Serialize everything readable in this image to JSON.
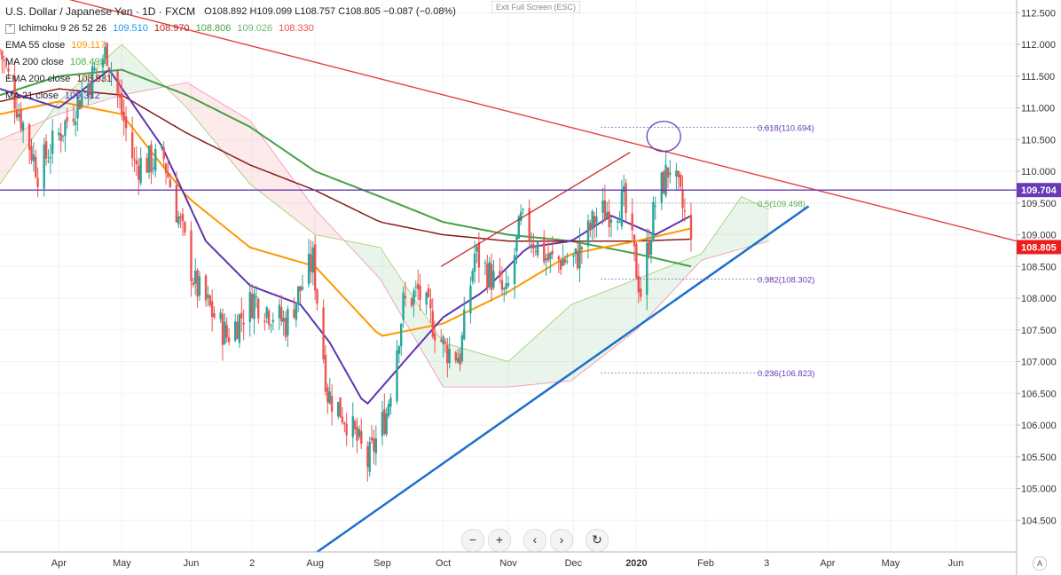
{
  "header": {
    "title": "U.S. Dollar / Japanese Yen · 1D · FXCM",
    "ohlc": "O108.892 H109.099 L108.757 C108.805 −0.087 (−0.08%)"
  },
  "indicators": [
    {
      "label": "Ichimoku 9 26 52 26",
      "values": [
        "109.510",
        "108.970",
        "108.806",
        "109.026",
        "108.330"
      ],
      "colors": [
        "#2196f3",
        "#b71c1c",
        "#43a047",
        "#66bb6a",
        "#ef5350"
      ]
    },
    {
      "label": "EMA 55 close",
      "values": [
        "109.117"
      ],
      "colors": [
        "#ff9800"
      ]
    },
    {
      "label": "MA 200 close",
      "values": [
        "108.499"
      ],
      "colors": [
        "#4caf50"
      ]
    },
    {
      "label": "EMA 200 close",
      "values": [
        "108.931"
      ],
      "colors": [
        "#8b1a1a"
      ]
    },
    {
      "label": "MA 21 close",
      "values": [
        "109.312"
      ],
      "colors": [
        "#5e35b1"
      ]
    }
  ],
  "ui": {
    "exit_fullscreen": "Exit Full Screen (ESC)",
    "auto_label": "A"
  },
  "nav": {
    "zoom_out": "−",
    "zoom_in": "+",
    "back": "‹",
    "forward": "›",
    "reset": "↻"
  },
  "colors": {
    "bull": "#26a69a",
    "bear": "#ef5350",
    "accent": "#673ab7",
    "price_label": "#ef1c1c"
  },
  "chart_data": {
    "type": "candlestick",
    "symbol": "USDJPY",
    "timeframe": "1D",
    "y_ticks": [
      "104.500",
      "105.000",
      "105.500",
      "106.000",
      "106.500",
      "107.000",
      "107.500",
      "108.000",
      "108.500",
      "109.000",
      "109.500",
      "110.000",
      "110.500",
      "111.000",
      "111.500",
      "112.000",
      "112.500"
    ],
    "x_ticks": [
      {
        "label": "Apr",
        "date": "2019-04-01"
      },
      {
        "label": "May",
        "date": "2019-05-01"
      },
      {
        "label": "Jun",
        "date": "2019-06-03"
      },
      {
        "label": "2",
        "date": "2019-07-02"
      },
      {
        "label": "Aug",
        "date": "2019-08-01"
      },
      {
        "label": "Sep",
        "date": "2019-09-02"
      },
      {
        "label": "Oct",
        "date": "2019-10-01"
      },
      {
        "label": "Nov",
        "date": "2019-11-01"
      },
      {
        "label": "Dec",
        "date": "2019-12-02"
      },
      {
        "label": "2020",
        "date": "2020-01-01"
      },
      {
        "label": "Feb",
        "date": "2020-02-03"
      },
      {
        "label": "3",
        "date": "2020-03-03"
      },
      {
        "label": "Apr",
        "date": "2020-04-01"
      },
      {
        "label": "May",
        "date": "2020-05-01"
      },
      {
        "label": "Jun",
        "date": "2020-06-01"
      }
    ],
    "x_start": "2019-03-04",
    "x_end": "2020-06-30",
    "y_range": [
      104.0,
      112.7
    ],
    "last_price": {
      "value": 108.805,
      "label": "108.805"
    },
    "horizontal_level": {
      "value": 109.704,
      "label": "109.704"
    },
    "fibonacci": [
      {
        "level": "0.618",
        "price": 110.694,
        "label": "0.618(110.694)",
        "color": "#673ab7"
      },
      {
        "level": "0.5",
        "price": 109.498,
        "label": "0.5(109.498)",
        "color": "#4caf50"
      },
      {
        "level": "0.382",
        "price": 108.302,
        "label": "0.382(108.302)",
        "color": "#673ab7"
      },
      {
        "level": "0.236",
        "price": 106.823,
        "label": "0.236(106.823)",
        "color": "#673ab7"
      }
    ],
    "trendlines": [
      {
        "name": "descending-resistance",
        "color": "#e53935",
        "points": [
          [
            "2019-04-01",
            112.75
          ],
          [
            "2020-06-30",
            108.9
          ]
        ]
      },
      {
        "name": "ascending-support",
        "color": "#1e6fc8",
        "points": [
          [
            "2019-08-02",
            104.0
          ],
          [
            "2020-03-23",
            109.45
          ]
        ]
      },
      {
        "name": "channel-top",
        "color": "#c62828",
        "points": [
          [
            "2019-09-30",
            108.5
          ],
          [
            "2019-12-29",
            110.3
          ]
        ]
      }
    ],
    "anchor_points": {
      "close": [
        [
          "2019-03-04",
          111.9
        ],
        [
          "2019-03-22",
          110.0
        ],
        [
          "2019-04-10",
          111.1
        ],
        [
          "2019-04-24",
          111.9
        ],
        [
          "2019-05-07",
          110.1
        ],
        [
          "2019-05-21",
          110.2
        ],
        [
          "2019-06-05",
          108.2
        ],
        [
          "2019-06-20",
          107.4
        ],
        [
          "2019-07-03",
          108.0
        ],
        [
          "2019-07-18",
          107.6
        ],
        [
          "2019-07-31",
          108.6
        ],
        [
          "2019-08-07",
          106.5
        ],
        [
          "2019-08-16",
          106.1
        ],
        [
          "2019-08-26",
          105.4
        ],
        [
          "2019-09-04",
          106.2
        ],
        [
          "2019-09-12",
          107.9
        ],
        [
          "2019-09-19",
          108.1
        ],
        [
          "2019-10-02",
          107.2
        ],
        [
          "2019-10-09",
          107.1
        ],
        [
          "2019-10-16",
          108.7
        ],
        [
          "2019-10-31",
          108.0
        ],
        [
          "2019-11-07",
          109.2
        ],
        [
          "2019-11-20",
          108.6
        ],
        [
          "2019-12-03",
          108.6
        ],
        [
          "2019-12-13",
          109.3
        ],
        [
          "2019-12-26",
          109.5
        ],
        [
          "2020-01-03",
          108.1
        ],
        [
          "2020-01-10",
          109.5
        ],
        [
          "2020-01-17",
          110.1
        ],
        [
          "2020-01-24",
          109.3
        ],
        [
          "2020-01-27",
          108.8
        ]
      ],
      "ema55": [
        [
          "2019-03-04",
          110.9
        ],
        [
          "2019-04-01",
          111.1
        ],
        [
          "2019-05-01",
          110.9
        ],
        [
          "2019-06-01",
          109.6
        ],
        [
          "2019-07-01",
          108.8
        ],
        [
          "2019-08-01",
          108.5
        ],
        [
          "2019-09-01",
          107.4
        ],
        [
          "2019-10-01",
          107.6
        ],
        [
          "2019-11-01",
          108.1
        ],
        [
          "2019-12-01",
          108.7
        ],
        [
          "2020-01-01",
          108.9
        ],
        [
          "2020-01-27",
          109.1
        ]
      ],
      "ma200": [
        [
          "2019-03-04",
          111.2
        ],
        [
          "2019-04-01",
          111.5
        ],
        [
          "2019-05-01",
          111.6
        ],
        [
          "2019-06-01",
          111.2
        ],
        [
          "2019-07-01",
          110.7
        ],
        [
          "2019-08-01",
          110.0
        ],
        [
          "2019-09-01",
          109.6
        ],
        [
          "2019-10-01",
          109.2
        ],
        [
          "2019-11-01",
          109.0
        ],
        [
          "2019-12-01",
          108.9
        ],
        [
          "2020-01-01",
          108.7
        ],
        [
          "2020-01-27",
          108.5
        ]
      ],
      "ema200": [
        [
          "2019-03-04",
          111.1
        ],
        [
          "2019-04-01",
          111.3
        ],
        [
          "2019-05-01",
          111.2
        ],
        [
          "2019-06-01",
          110.6
        ],
        [
          "2019-07-01",
          110.1
        ],
        [
          "2019-08-01",
          109.7
        ],
        [
          "2019-09-01",
          109.2
        ],
        [
          "2019-10-01",
          109.0
        ],
        [
          "2019-11-01",
          108.9
        ],
        [
          "2019-12-01",
          108.9
        ],
        [
          "2020-01-01",
          108.9
        ],
        [
          "2020-01-27",
          108.93
        ]
      ],
      "ma21": [
        [
          "2019-03-04",
          111.3
        ],
        [
          "2019-04-01",
          111.0
        ],
        [
          "2019-04-25",
          111.6
        ],
        [
          "2019-05-20",
          110.4
        ],
        [
          "2019-06-10",
          108.9
        ],
        [
          "2019-07-01",
          108.2
        ],
        [
          "2019-07-25",
          107.9
        ],
        [
          "2019-08-08",
          107.3
        ],
        [
          "2019-08-25",
          106.3
        ],
        [
          "2019-09-15",
          107.1
        ],
        [
          "2019-10-01",
          107.7
        ],
        [
          "2019-10-20",
          108.1
        ],
        [
          "2019-11-10",
          108.8
        ],
        [
          "2019-12-01",
          108.9
        ],
        [
          "2019-12-20",
          109.3
        ],
        [
          "2020-01-10",
          109.0
        ],
        [
          "2020-01-27",
          109.3
        ]
      ],
      "kumo_a": [
        [
          "2019-03-04",
          109.8
        ],
        [
          "2019-04-01",
          111.1
        ],
        [
          "2019-05-01",
          112.0
        ],
        [
          "2019-06-01",
          111.0
        ],
        [
          "2019-07-01",
          109.8
        ],
        [
          "2019-08-01",
          109.0
        ],
        [
          "2019-09-01",
          108.8
        ],
        [
          "2019-10-01",
          107.3
        ],
        [
          "2019-11-01",
          107.0
        ],
        [
          "2019-12-01",
          107.9
        ],
        [
          "2020-01-01",
          108.3
        ],
        [
          "2020-02-01",
          108.7
        ],
        [
          "2020-02-20",
          109.6
        ],
        [
          "2020-03-04",
          109.4
        ]
      ],
      "kumo_b": [
        [
          "2019-03-04",
          110.5
        ],
        [
          "2019-04-01",
          110.9
        ],
        [
          "2019-05-01",
          111.2
        ],
        [
          "2019-06-01",
          111.4
        ],
        [
          "2019-07-01",
          110.8
        ],
        [
          "2019-08-01",
          109.4
        ],
        [
          "2019-09-01",
          108.3
        ],
        [
          "2019-10-01",
          106.6
        ],
        [
          "2019-11-01",
          106.6
        ],
        [
          "2019-12-01",
          106.7
        ],
        [
          "2020-01-01",
          107.5
        ],
        [
          "2020-02-01",
          108.6
        ],
        [
          "2020-03-04",
          108.9
        ]
      ]
    }
  }
}
